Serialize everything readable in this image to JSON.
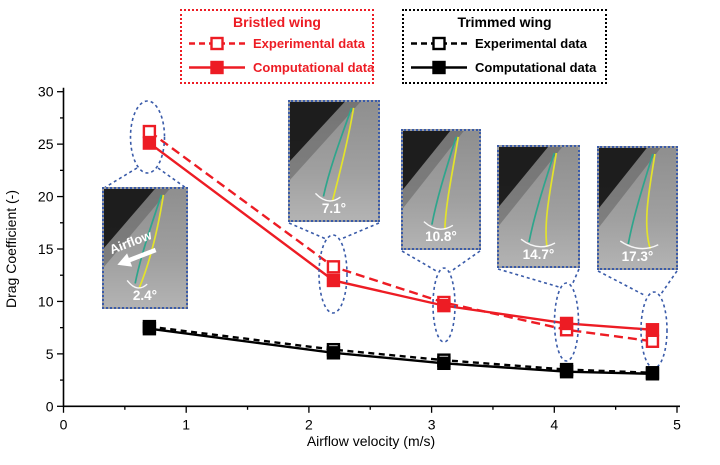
{
  "chart_data": {
    "type": "line",
    "title": "",
    "xlabel": "Airflow velocity (m/s)",
    "ylabel": "Drag Coefficient (-)",
    "xlim": [
      0,
      5
    ],
    "ylim": [
      0,
      30
    ],
    "x_ticks": [
      0,
      1,
      2,
      3,
      4,
      5
    ],
    "y_ticks": [
      0,
      5,
      10,
      15,
      20,
      25,
      30
    ],
    "grid": false,
    "legend_position": "top",
    "x": [
      0.7,
      2.2,
      3.1,
      4.1,
      4.8
    ],
    "series": [
      {
        "name": "Bristled wing - Experimental data",
        "group": "Bristled wing",
        "color": "#ed1c24",
        "line": "dashed",
        "marker": "open-square",
        "values": [
          26.2,
          13.3,
          9.9,
          7.3,
          6.2
        ]
      },
      {
        "name": "Bristled wing - Computational data",
        "group": "Bristled wing",
        "color": "#ed1c24",
        "line": "solid",
        "marker": "filled-square",
        "values": [
          25.1,
          12.0,
          9.6,
          7.9,
          7.3
        ]
      },
      {
        "name": "Trimmed wing - Experimental data",
        "group": "Trimmed wing",
        "color": "#000000",
        "line": "dashed",
        "marker": "open-square",
        "values": [
          7.6,
          5.4,
          4.4,
          3.5,
          3.2
        ]
      },
      {
        "name": "Trimmed wing - Computational data",
        "group": "Trimmed wing",
        "color": "#000000",
        "line": "solid",
        "marker": "filled-square",
        "values": [
          7.4,
          5.1,
          4.1,
          3.3,
          3.1
        ]
      }
    ],
    "annotations": [
      {
        "velocity": 0.7,
        "label": "2.4°"
      },
      {
        "velocity": 2.2,
        "label": "7.1°"
      },
      {
        "velocity": 3.1,
        "label": "10.8°"
      },
      {
        "velocity": 4.1,
        "label": "14.7°"
      },
      {
        "velocity": 4.8,
        "label": "17.3°"
      }
    ]
  },
  "legend": {
    "bristled": {
      "title": "Bristled wing",
      "experimental": "Experimental data",
      "computational": "Computational data"
    },
    "trimmed": {
      "title": "Trimmed wing",
      "experimental": "Experimental data",
      "computational": "Computational data"
    }
  },
  "insets": {
    "airflow_label": "Airflow"
  },
  "colors": {
    "bristled": "#ed1c24",
    "trimmed": "#000000",
    "callout_blue": "#3a5ba9",
    "trace_teal": "#2fa58c",
    "trace_yellow": "#e3e32b",
    "photo_gray": "#9e9e9e"
  }
}
